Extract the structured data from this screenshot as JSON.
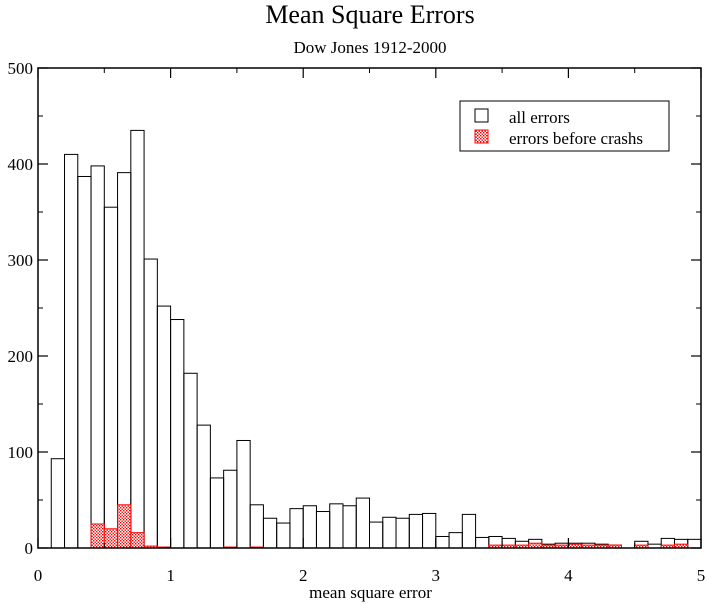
{
  "chart_data": {
    "type": "bar",
    "title": "Mean Square Errors",
    "subtitle": "Dow Jones 1912-2000",
    "xlabel": "mean square error",
    "ylabel": "",
    "xlim": [
      0,
      5
    ],
    "ylim": [
      0,
      500
    ],
    "xticks": [
      "0",
      "1",
      "2",
      "3",
      "4",
      "5"
    ],
    "yticks": [
      "0",
      "100",
      "200",
      "300",
      "400",
      "500"
    ],
    "bin_width": 0.1,
    "grid": false,
    "legend_position": "top-right",
    "series": [
      {
        "name": "all errors",
        "color": "#000000",
        "fill": "none",
        "bins": [
          [
            0.15,
            93
          ],
          [
            0.25,
            410
          ],
          [
            0.35,
            387
          ],
          [
            0.45,
            398
          ],
          [
            0.55,
            355
          ],
          [
            0.65,
            391
          ],
          [
            0.75,
            435
          ],
          [
            0.85,
            301
          ],
          [
            0.95,
            252
          ],
          [
            1.05,
            238
          ],
          [
            1.15,
            182
          ],
          [
            1.25,
            128
          ],
          [
            1.35,
            73
          ],
          [
            1.45,
            81
          ],
          [
            1.55,
            112
          ],
          [
            1.65,
            45
          ],
          [
            1.75,
            31
          ],
          [
            1.85,
            26
          ],
          [
            1.95,
            41
          ],
          [
            2.05,
            44
          ],
          [
            2.15,
            38
          ],
          [
            2.25,
            46
          ],
          [
            2.35,
            44
          ],
          [
            2.45,
            52
          ],
          [
            2.55,
            27
          ],
          [
            2.65,
            32
          ],
          [
            2.75,
            31
          ],
          [
            2.85,
            35
          ],
          [
            2.95,
            36
          ],
          [
            3.05,
            12
          ],
          [
            3.15,
            16
          ],
          [
            3.25,
            35
          ],
          [
            3.35,
            11
          ],
          [
            3.45,
            12
          ],
          [
            3.55,
            10
          ],
          [
            3.65,
            7
          ],
          [
            3.75,
            9
          ],
          [
            3.85,
            4
          ],
          [
            3.95,
            5
          ],
          [
            4.05,
            5
          ],
          [
            4.15,
            5
          ],
          [
            4.25,
            4
          ],
          [
            4.35,
            3
          ],
          [
            4.55,
            7
          ],
          [
            4.65,
            4
          ],
          [
            4.75,
            10
          ],
          [
            4.85,
            9
          ],
          [
            4.95,
            9
          ]
        ]
      },
      {
        "name": "errors before crashs",
        "color": "#ff0000",
        "fill": "dotted",
        "bins": [
          [
            0.45,
            25
          ],
          [
            0.55,
            20
          ],
          [
            0.65,
            45
          ],
          [
            0.75,
            16
          ],
          [
            0.85,
            2
          ],
          [
            0.95,
            1
          ],
          [
            1.45,
            1
          ],
          [
            1.65,
            1
          ],
          [
            3.45,
            3
          ],
          [
            3.55,
            3
          ],
          [
            3.65,
            3
          ],
          [
            3.75,
            5
          ],
          [
            3.85,
            3
          ],
          [
            3.95,
            3
          ],
          [
            4.05,
            4
          ],
          [
            4.15,
            3
          ],
          [
            4.25,
            3
          ],
          [
            4.35,
            3
          ],
          [
            4.55,
            3
          ],
          [
            4.75,
            3
          ],
          [
            4.85,
            4
          ]
        ]
      }
    ]
  }
}
